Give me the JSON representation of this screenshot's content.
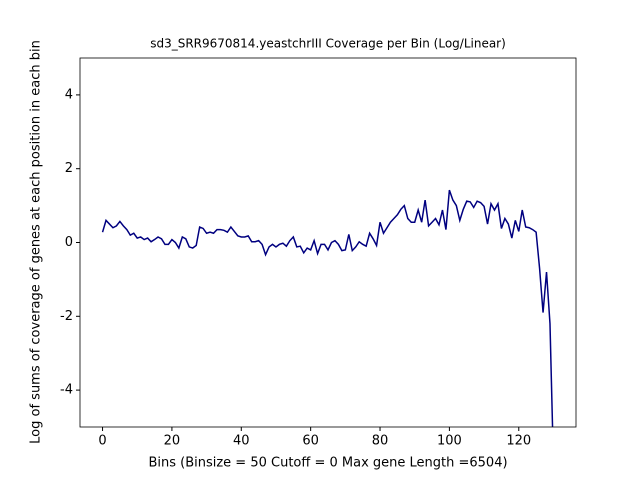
{
  "chart_data": {
    "type": "line",
    "title": "sd3_SRR9670814.yeastchrIII Coverage per Bin (Log/Linear)",
    "xlabel": "Bins  (Binsize = 50 Cutoff = 0 Max gene Length =6504)",
    "ylabel": "Log of sums of coverage of genes at each position in each bin",
    "x": [
      0,
      1,
      2,
      3,
      4,
      5,
      6,
      7,
      8,
      9,
      10,
      11,
      12,
      13,
      14,
      15,
      16,
      17,
      18,
      19,
      20,
      21,
      22,
      23,
      24,
      25,
      26,
      27,
      28,
      29,
      30,
      31,
      32,
      33,
      34,
      35,
      36,
      37,
      38,
      39,
      40,
      41,
      42,
      43,
      44,
      45,
      46,
      47,
      48,
      49,
      50,
      51,
      52,
      53,
      54,
      55,
      56,
      57,
      58,
      59,
      60,
      61,
      62,
      63,
      64,
      65,
      66,
      67,
      68,
      69,
      70,
      71,
      72,
      73,
      74,
      75,
      76,
      77,
      78,
      79,
      80,
      81,
      82,
      83,
      84,
      85,
      86,
      87,
      88,
      89,
      90,
      91,
      92,
      93,
      94,
      95,
      96,
      97,
      98,
      99,
      100,
      101,
      102,
      103,
      104,
      105,
      106,
      107,
      108,
      109,
      110,
      111,
      112,
      113,
      114,
      115,
      116,
      117,
      118,
      119,
      120,
      121,
      122,
      123,
      124,
      125,
      126,
      127,
      128,
      129,
      130
    ],
    "series": [
      {
        "color": "#000080",
        "values": [
          0.28,
          0.6,
          0.5,
          0.4,
          0.45,
          0.57,
          0.45,
          0.35,
          0.2,
          0.25,
          0.12,
          0.15,
          0.08,
          0.12,
          0.02,
          0.08,
          0.15,
          0.1,
          -0.05,
          -0.05,
          0.08,
          0.0,
          -0.15,
          0.15,
          0.1,
          -0.12,
          -0.15,
          -0.08,
          0.42,
          0.38,
          0.25,
          0.28,
          0.25,
          0.35,
          0.35,
          0.33,
          0.28,
          0.42,
          0.3,
          0.18,
          0.15,
          0.15,
          0.18,
          0.02,
          0.02,
          0.05,
          -0.05,
          -0.33,
          -0.12,
          -0.05,
          -0.12,
          -0.05,
          -0.02,
          -0.1,
          0.05,
          0.15,
          -0.12,
          -0.1,
          -0.28,
          -0.15,
          -0.2,
          0.05,
          -0.3,
          -0.05,
          -0.05,
          -0.2,
          0.0,
          0.05,
          -0.05,
          -0.22,
          -0.2,
          0.22,
          -0.22,
          -0.12,
          0.02,
          -0.05,
          -0.1,
          0.25,
          0.1,
          -0.08,
          0.55,
          0.25,
          0.4,
          0.55,
          0.65,
          0.75,
          0.9,
          1.0,
          0.65,
          0.55,
          0.55,
          0.88,
          0.55,
          1.15,
          0.45,
          0.55,
          0.65,
          0.48,
          0.88,
          0.35,
          1.42,
          1.15,
          1.0,
          0.6,
          0.9,
          1.12,
          1.1,
          0.95,
          1.12,
          1.08,
          0.98,
          0.5,
          1.05,
          0.88,
          1.05,
          0.38,
          0.65,
          0.5,
          0.12,
          0.6,
          0.3,
          0.88,
          0.42,
          0.4,
          0.35,
          0.28,
          -0.7,
          -1.9,
          -0.8,
          -2.2,
          -6
        ]
      }
    ],
    "xlim": [
      -6.5,
      136.5
    ],
    "ylim": [
      -5,
      5
    ],
    "xticks": [
      0,
      20,
      40,
      60,
      80,
      100,
      120
    ],
    "yticks": [
      -4,
      -2,
      0,
      2,
      4
    ]
  }
}
